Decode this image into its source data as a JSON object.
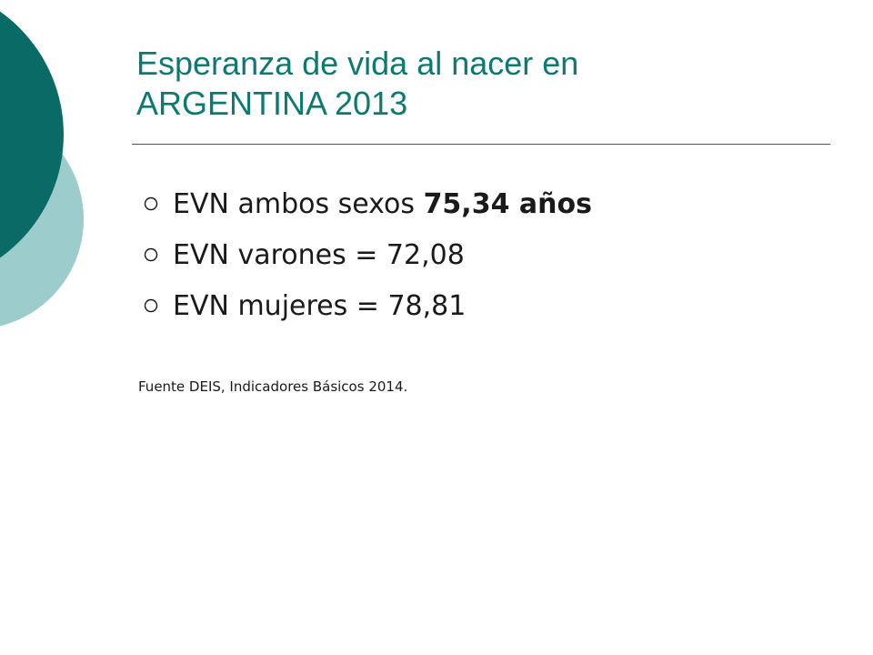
{
  "slide": {
    "title_lines": [
      "Esperanza de vida al nacer en",
      "ARGENTINA 2013"
    ],
    "bullets": [
      {
        "label": "EVN ambos sexos",
        "value": "75,34 años"
      },
      {
        "label": "EVN varones = 72,08"
      },
      {
        "label": "EVN mujeres = 78,81"
      }
    ],
    "source": "Fuente DEIS, Indicadores Básicos 2014."
  },
  "colors": {
    "title": "#0d7a72",
    "circle_dark": "#0a6b66",
    "circle_light": "#9ccccb",
    "text": "#1a1a1a"
  },
  "icons": {
    "bullet": "hollow-circle-icon"
  }
}
